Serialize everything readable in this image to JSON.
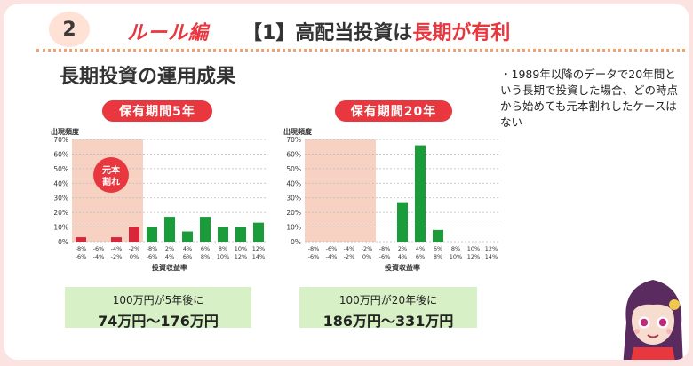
{
  "header": {
    "number": "2",
    "rule_title": "ルール編",
    "title_prefix": "【1】高配当投資は",
    "title_highlight": "長期が有利"
  },
  "section_title": "長期投資の運用成果",
  "bullet_text": "・1989年以降のデータで20年間という長期で投資した場合、どの時点から始めても元本割れしたケースはない",
  "colors": {
    "accent_red": "#e8373f",
    "bar_green": "#1a9c3a",
    "bar_red": "#d9263a",
    "loss_shade": "#f6c9b6",
    "summary_bg": "#d8f0c6"
  },
  "chart_data": [
    {
      "type": "bar",
      "title": "保有期間5年",
      "ylabel": "出現頻度",
      "xlabel": "投資収益率",
      "ylim": [
        0,
        70
      ],
      "y_ticks": [
        "0%",
        "10%",
        "20%",
        "30%",
        "40%",
        "50%",
        "60%",
        "70%"
      ],
      "categories": [
        [
          "-8%",
          "-6%"
        ],
        [
          "-6%",
          "-4%"
        ],
        [
          "-4%",
          "-2%"
        ],
        [
          "-2%",
          "0%"
        ],
        [
          "-8%",
          "-6%"
        ],
        [
          "2%",
          "4%"
        ],
        [
          "4%",
          "6%"
        ],
        [
          "6%",
          "8%"
        ],
        [
          "8%",
          "10%"
        ],
        [
          "10%",
          "12%"
        ],
        [
          "12%",
          "14%"
        ]
      ],
      "values": [
        3,
        0,
        3,
        10,
        10,
        17,
        7,
        17,
        10,
        10,
        13
      ],
      "loss_bins": 4,
      "loss_label": [
        "元本",
        "割れ"
      ],
      "summary_line1": "100万円が5年後に",
      "summary_line2": "74万円〜176万円"
    },
    {
      "type": "bar",
      "title": "保有期間20年",
      "ylabel": "出現頻度",
      "xlabel": "投資収益率",
      "ylim": [
        0,
        70
      ],
      "y_ticks": [
        "0%",
        "10%",
        "20%",
        "30%",
        "40%",
        "50%",
        "60%",
        "70%"
      ],
      "categories": [
        [
          "-8%",
          "-6%"
        ],
        [
          "-6%",
          "-4%"
        ],
        [
          "-4%",
          "-2%"
        ],
        [
          "-2%",
          "0%"
        ],
        [
          "-8%",
          "-6%"
        ],
        [
          "2%",
          "4%"
        ],
        [
          "4%",
          "6%"
        ],
        [
          "6%",
          "8%"
        ],
        [
          "8%",
          "10%"
        ],
        [
          "10%",
          "12%"
        ],
        [
          "12%",
          "14%"
        ]
      ],
      "values": [
        0,
        0,
        0,
        0,
        0,
        27,
        66,
        8,
        0,
        0,
        0
      ],
      "loss_bins": 4,
      "summary_line1": "100万円が20年後に",
      "summary_line2": "186万円〜331万円"
    }
  ]
}
